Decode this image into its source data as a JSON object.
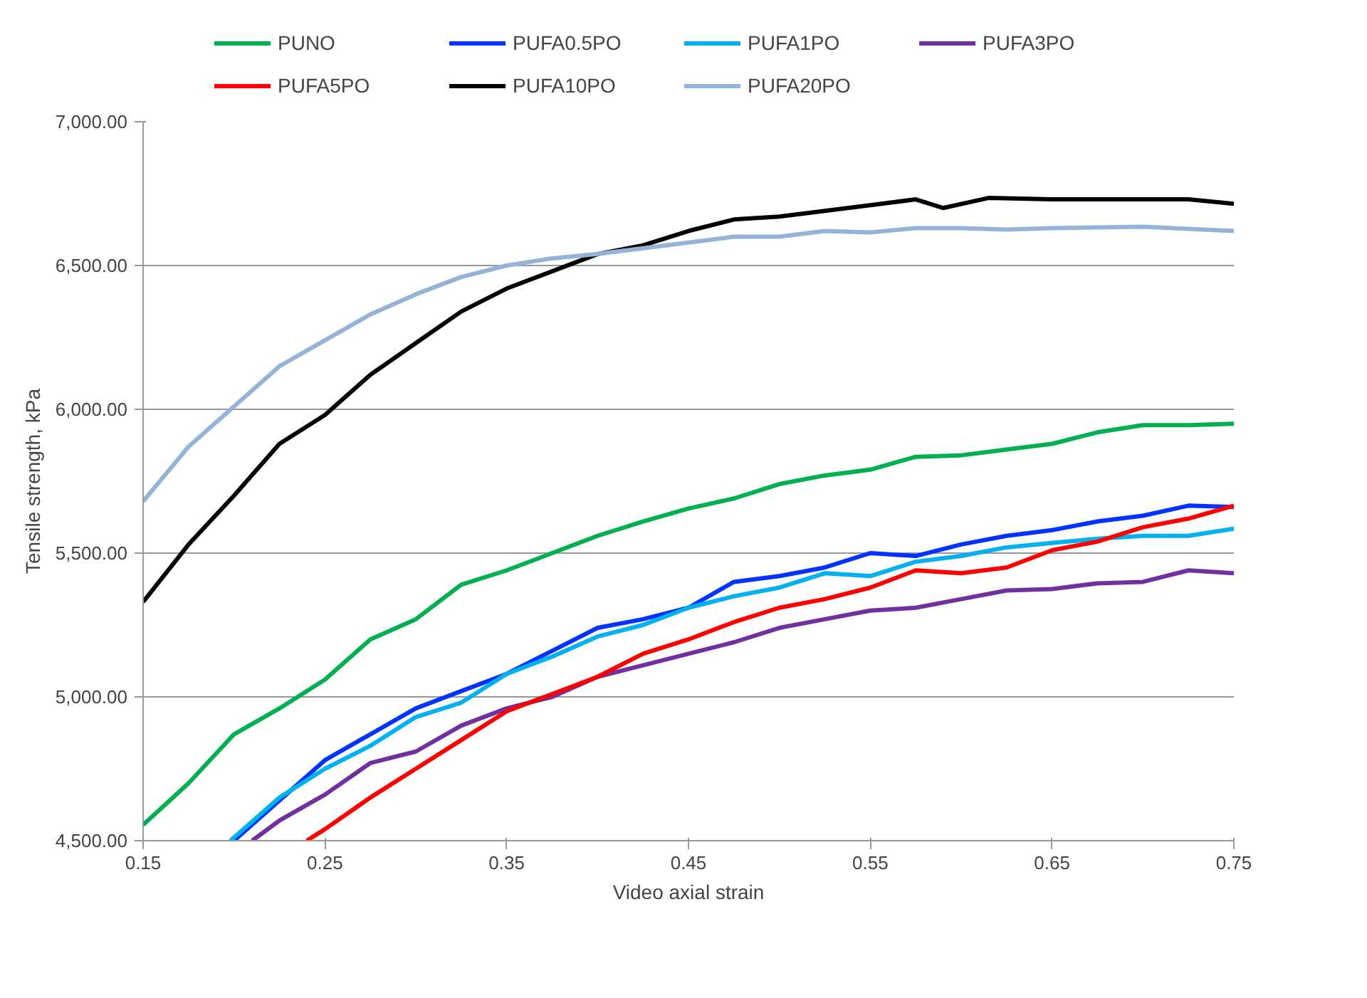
{
  "chart_data": {
    "type": "line",
    "xlabel": "Video axial strain",
    "ylabel": "Tensile strength, kPa",
    "xlim": [
      0.15,
      0.75
    ],
    "xticks": [
      0.15,
      0.25,
      0.35,
      0.45,
      0.55,
      0.65,
      0.75
    ],
    "ylim": [
      4500,
      7000
    ],
    "yticks": [
      {
        "value": 4500,
        "label": "4,500.00"
      },
      {
        "value": 5000,
        "label": "5,000.00"
      },
      {
        "value": 5500,
        "label": "5,500.00"
      },
      {
        "value": 6000,
        "label": "6,000.00"
      },
      {
        "value": 6500,
        "label": "6,500.00"
      },
      {
        "value": 7000,
        "label": "7,000.00"
      }
    ],
    "grid": "y",
    "legend": "top",
    "marker": "none",
    "line_style": "solid",
    "series": [
      {
        "name": "PUNO",
        "color": "#00b050",
        "x": [
          0.15,
          0.175,
          0.2,
          0.225,
          0.25,
          0.275,
          0.3,
          0.325,
          0.35,
          0.375,
          0.4,
          0.425,
          0.45,
          0.475,
          0.5,
          0.525,
          0.55,
          0.575,
          0.6,
          0.625,
          0.65,
          0.675,
          0.7,
          0.725,
          0.75
        ],
        "values": [
          4555,
          4700,
          4870,
          4960,
          5060,
          5200,
          5270,
          5390,
          5440,
          5500,
          5560,
          5610,
          5655,
          5690,
          5740,
          5770,
          5790,
          5835,
          5840,
          5860,
          5880,
          5920,
          5945,
          5945,
          5950
        ]
      },
      {
        "name": "PUFA0.5PO",
        "color": "#0033ff",
        "x": [
          0.2,
          0.225,
          0.25,
          0.275,
          0.3,
          0.325,
          0.35,
          0.375,
          0.4,
          0.425,
          0.45,
          0.475,
          0.5,
          0.525,
          0.55,
          0.575,
          0.6,
          0.625,
          0.65,
          0.675,
          0.7,
          0.725,
          0.75
        ],
        "values": [
          4500,
          4640,
          4780,
          4870,
          4960,
          5020,
          5080,
          5160,
          5240,
          5270,
          5310,
          5400,
          5420,
          5450,
          5500,
          5490,
          5530,
          5560,
          5580,
          5610,
          5630,
          5665,
          5660
        ]
      },
      {
        "name": "PUFA1PO",
        "color": "#00b0f0",
        "x": [
          0.198,
          0.225,
          0.25,
          0.275,
          0.3,
          0.325,
          0.35,
          0.375,
          0.4,
          0.425,
          0.45,
          0.475,
          0.5,
          0.525,
          0.55,
          0.575,
          0.6,
          0.625,
          0.65,
          0.675,
          0.7,
          0.725,
          0.75
        ],
        "values": [
          4500,
          4650,
          4750,
          4830,
          4930,
          4980,
          5080,
          5140,
          5210,
          5250,
          5310,
          5350,
          5380,
          5430,
          5420,
          5470,
          5490,
          5520,
          5535,
          5550,
          5560,
          5560,
          5585
        ]
      },
      {
        "name": "PUFA3PO",
        "color": "#7030a0",
        "x": [
          0.21,
          0.225,
          0.25,
          0.275,
          0.3,
          0.325,
          0.35,
          0.375,
          0.4,
          0.425,
          0.45,
          0.475,
          0.5,
          0.525,
          0.55,
          0.575,
          0.6,
          0.625,
          0.65,
          0.675,
          0.7,
          0.725,
          0.75
        ],
        "values": [
          4500,
          4570,
          4660,
          4770,
          4810,
          4900,
          4960,
          5000,
          5070,
          5110,
          5150,
          5190,
          5240,
          5270,
          5300,
          5310,
          5340,
          5370,
          5375,
          5395,
          5400,
          5440,
          5430
        ]
      },
      {
        "name": "PUFA5PO",
        "color": "#ff0000",
        "x": [
          0.24,
          0.25,
          0.275,
          0.3,
          0.325,
          0.35,
          0.375,
          0.4,
          0.425,
          0.45,
          0.475,
          0.5,
          0.525,
          0.55,
          0.575,
          0.6,
          0.625,
          0.65,
          0.675,
          0.7,
          0.725,
          0.75
        ],
        "values": [
          4500,
          4540,
          4650,
          4750,
          4850,
          4950,
          5010,
          5070,
          5150,
          5200,
          5260,
          5310,
          5340,
          5380,
          5440,
          5430,
          5450,
          5510,
          5540,
          5590,
          5620,
          5665
        ]
      },
      {
        "name": "PUFA10PO",
        "color": "#000000",
        "x": [
          0.15,
          0.175,
          0.2,
          0.225,
          0.25,
          0.275,
          0.3,
          0.325,
          0.35,
          0.375,
          0.4,
          0.425,
          0.45,
          0.475,
          0.5,
          0.525,
          0.55,
          0.575,
          0.59,
          0.615,
          0.65,
          0.7,
          0.725,
          0.75
        ],
        "values": [
          5330,
          5530,
          5700,
          5880,
          5980,
          6120,
          6230,
          6340,
          6420,
          6480,
          6540,
          6570,
          6620,
          6660,
          6670,
          6690,
          6710,
          6730,
          6700,
          6735,
          6730,
          6730,
          6730,
          6715
        ]
      },
      {
        "name": "PUFA20PO",
        "color": "#95b3d7",
        "x": [
          0.15,
          0.175,
          0.2,
          0.225,
          0.25,
          0.275,
          0.3,
          0.325,
          0.35,
          0.375,
          0.4,
          0.425,
          0.45,
          0.475,
          0.5,
          0.525,
          0.55,
          0.575,
          0.6,
          0.625,
          0.65,
          0.7,
          0.75
        ],
        "values": [
          5680,
          5870,
          6010,
          6150,
          6240,
          6330,
          6400,
          6460,
          6500,
          6525,
          6540,
          6560,
          6580,
          6600,
          6600,
          6620,
          6615,
          6630,
          6630,
          6625,
          6630,
          6635,
          6620
        ]
      }
    ]
  }
}
